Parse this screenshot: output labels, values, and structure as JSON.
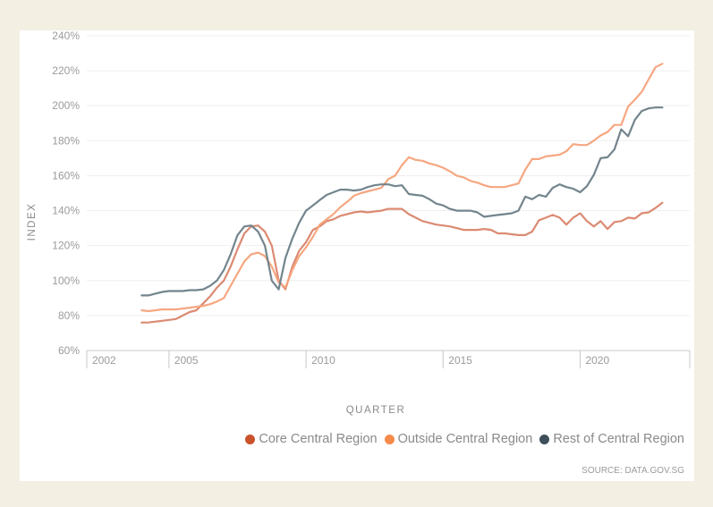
{
  "chart_data": {
    "type": "line",
    "title": "",
    "xlabel": "QUARTER",
    "ylabel": "INDEX",
    "ylim": [
      60,
      240
    ],
    "xlim": [
      2002.0,
      2024.0
    ],
    "y_ticks": [
      "60%",
      "80%",
      "100%",
      "120%",
      "140%",
      "160%",
      "180%",
      "200%",
      "220%",
      "240%"
    ],
    "y_tick_values": [
      60,
      80,
      100,
      120,
      140,
      160,
      180,
      200,
      220,
      240
    ],
    "x_ticks": [
      "2002",
      "2005",
      "2010",
      "2015",
      "2020"
    ],
    "x_tick_values": [
      2002,
      2005,
      2010,
      2015,
      2020
    ],
    "grid": true,
    "legend_position": "bottom-right",
    "x_start": 2004.0,
    "x_step": 0.25,
    "series": [
      {
        "name": "Core Central Region",
        "color": "#c9522a",
        "line_color": "#d9846a",
        "values": [
          76,
          76,
          76.5,
          77,
          77.5,
          78,
          80,
          82,
          83,
          87,
          91,
          96,
          100,
          108,
          118,
          127,
          131,
          131.5,
          128,
          120,
          100,
          95,
          108,
          117,
          122,
          129,
          131,
          134,
          135,
          137,
          138,
          139,
          139.5,
          139,
          139.5,
          140,
          141,
          141,
          141,
          138,
          136,
          134,
          133,
          132,
          131.5,
          131,
          130,
          129,
          129,
          129,
          129.5,
          129,
          127,
          127,
          126.5,
          126,
          126,
          128,
          134.5,
          136,
          137.5,
          136,
          132,
          136,
          138.5,
          134,
          131,
          134,
          129.5,
          133.5,
          134,
          136,
          135.5,
          138.5,
          139,
          141.5,
          144.5
        ]
      },
      {
        "name": "Outside Central Region",
        "color": "#f68a4a",
        "line_color": "#f6a27a",
        "values": [
          83,
          82.5,
          83,
          83.5,
          83.5,
          83.5,
          84,
          84.5,
          85,
          85.5,
          86.5,
          88,
          90,
          97,
          104,
          111,
          115,
          116,
          114,
          108,
          99,
          96,
          106,
          114,
          119,
          125,
          132,
          135,
          138,
          142,
          145,
          148.5,
          150,
          151,
          152,
          153,
          158,
          160,
          166,
          170.5,
          169,
          168.5,
          167,
          166,
          164.5,
          162.5,
          160,
          159,
          157,
          156,
          154.5,
          153.5,
          153.5,
          153.5,
          154.5,
          155.5,
          163.5,
          169.5,
          169.5,
          171,
          171.5,
          172,
          174,
          178,
          177.5,
          177.5,
          180,
          183,
          185,
          189,
          189,
          199.5,
          203.5,
          208,
          215,
          222,
          224
        ]
      },
      {
        "name": "Rest of Central Region",
        "color": "#3d4f5a",
        "line_color": "#6b7e87",
        "values": [
          91.5,
          91.5,
          92.5,
          93.5,
          94,
          94,
          94,
          94.5,
          94.5,
          95,
          97,
          100,
          106,
          115,
          126,
          131,
          131.5,
          128,
          120,
          100,
          95,
          113,
          124,
          133,
          140,
          143,
          146,
          149,
          150.5,
          152,
          152,
          151.5,
          152,
          153.5,
          154.5,
          155,
          155,
          154,
          154.5,
          149.5,
          149,
          148.5,
          146.5,
          144,
          143,
          141,
          140,
          140,
          140,
          139,
          136.5,
          137,
          137.5,
          138,
          138.5,
          140,
          148,
          146.5,
          149,
          148,
          153,
          155,
          153.5,
          152.5,
          150.5,
          154,
          160.5,
          170,
          170.5,
          175,
          186.5,
          182.5,
          192,
          197,
          198.5,
          199,
          199
        ]
      }
    ],
    "legend": [
      "Core Central Region",
      "Outside Central Region",
      "Rest of Central Region"
    ],
    "source": "SOURCE: DATA.GOV.SG"
  }
}
